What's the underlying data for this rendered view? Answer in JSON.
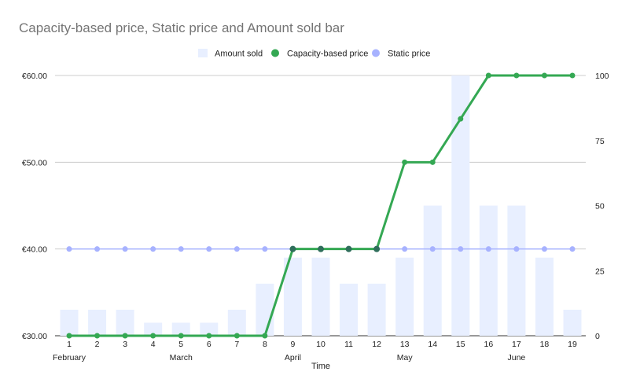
{
  "chart_data": {
    "type": "bar",
    "title": "Capacity-based price, Static price and Amount sold bar",
    "xlabel": "Time",
    "x": [
      1,
      2,
      3,
      4,
      5,
      6,
      7,
      8,
      9,
      10,
      11,
      12,
      13,
      14,
      15,
      16,
      17,
      18,
      19
    ],
    "month_labels": [
      {
        "label": "February",
        "at": 1
      },
      {
        "label": "March",
        "at": 5
      },
      {
        "label": "April",
        "at": 9
      },
      {
        "label": "May",
        "at": 13
      },
      {
        "label": "June",
        "at": 17
      }
    ],
    "y_left": {
      "ticks": [
        "€30.00",
        "€40.00",
        "€50.00",
        "€60.00"
      ],
      "ylim": [
        30,
        60
      ]
    },
    "y_right": {
      "ticks": [
        "0",
        "25",
        "50",
        "75",
        "100"
      ],
      "ylim": [
        0,
        100
      ]
    },
    "series": [
      {
        "name": "Amount sold",
        "type": "bar",
        "axis": "right",
        "color": "#e8efff",
        "values": [
          10,
          10,
          10,
          5,
          5,
          5,
          10,
          20,
          30,
          30,
          20,
          20,
          30,
          50,
          100,
          50,
          50,
          30,
          10
        ]
      },
      {
        "name": "Capacity-based price",
        "type": "line",
        "axis": "left",
        "color": "#34a853",
        "values": [
          30,
          30,
          30,
          30,
          30,
          30,
          30,
          30,
          40,
          40,
          40,
          40,
          50,
          50,
          55,
          60,
          60,
          60,
          60
        ]
      },
      {
        "name": "Static price",
        "type": "line",
        "axis": "left",
        "color": "#a7b2ff",
        "values": [
          40,
          40,
          40,
          40,
          40,
          40,
          40,
          40,
          40,
          40,
          40,
          40,
          40,
          40,
          40,
          40,
          40,
          40,
          40
        ]
      }
    ],
    "grid": true,
    "legend": "top"
  }
}
